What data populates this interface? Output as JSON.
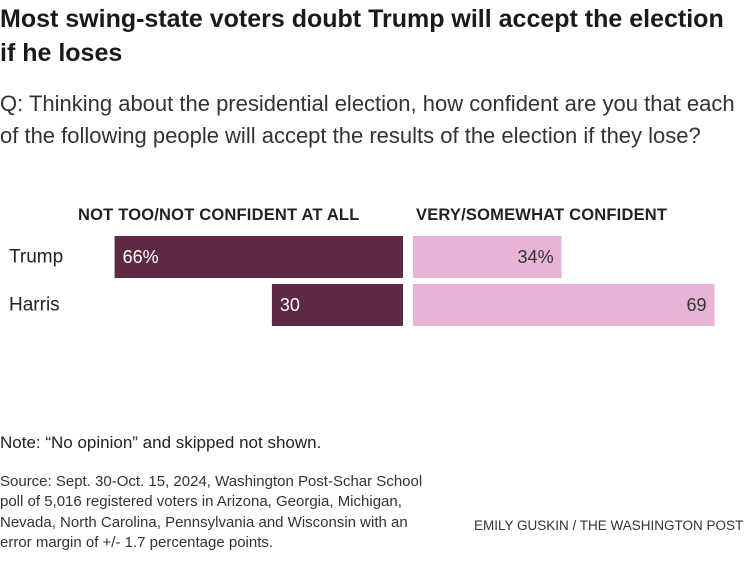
{
  "title": "Most swing-state voters doubt Trump will accept the election if he loses",
  "question": "Q: Thinking about the presidential election, how confident are you that each of the following people will accept the results of the election if they lose?",
  "note": "Note: “No opinion” and skipped not shown.",
  "source": "Source: Sept. 30-Oct. 15, 2024, Washington Post-Schar School poll of 5,016 registered voters in Arizona, Georgia, Michigan, Nevada, North Carolina, Pennsylvania and Wisconsin with an error margin of +/- 1.7 percentage points.",
  "credit": "EMILY GUSKIN / THE WASHINGTON POST",
  "colors": {
    "not_confident": "#5e2a43",
    "confident": "#e8b4d6",
    "label_on_dark": "#ffffff",
    "label_on_light": "#333333"
  },
  "chart_data": {
    "type": "bar",
    "orientation": "horizontal-diverging",
    "categories": [
      "Trump",
      "Harris"
    ],
    "series": [
      {
        "name": "NOT TOO/NOT CONFIDENT AT ALL",
        "values": [
          66,
          30
        ],
        "labels": [
          "66%",
          "30"
        ]
      },
      {
        "name": "VERY/SOMEWHAT CONFIDENT",
        "values": [
          34,
          69
        ],
        "labels": [
          "34%",
          "69"
        ]
      }
    ],
    "xlim": [
      0,
      100
    ]
  }
}
